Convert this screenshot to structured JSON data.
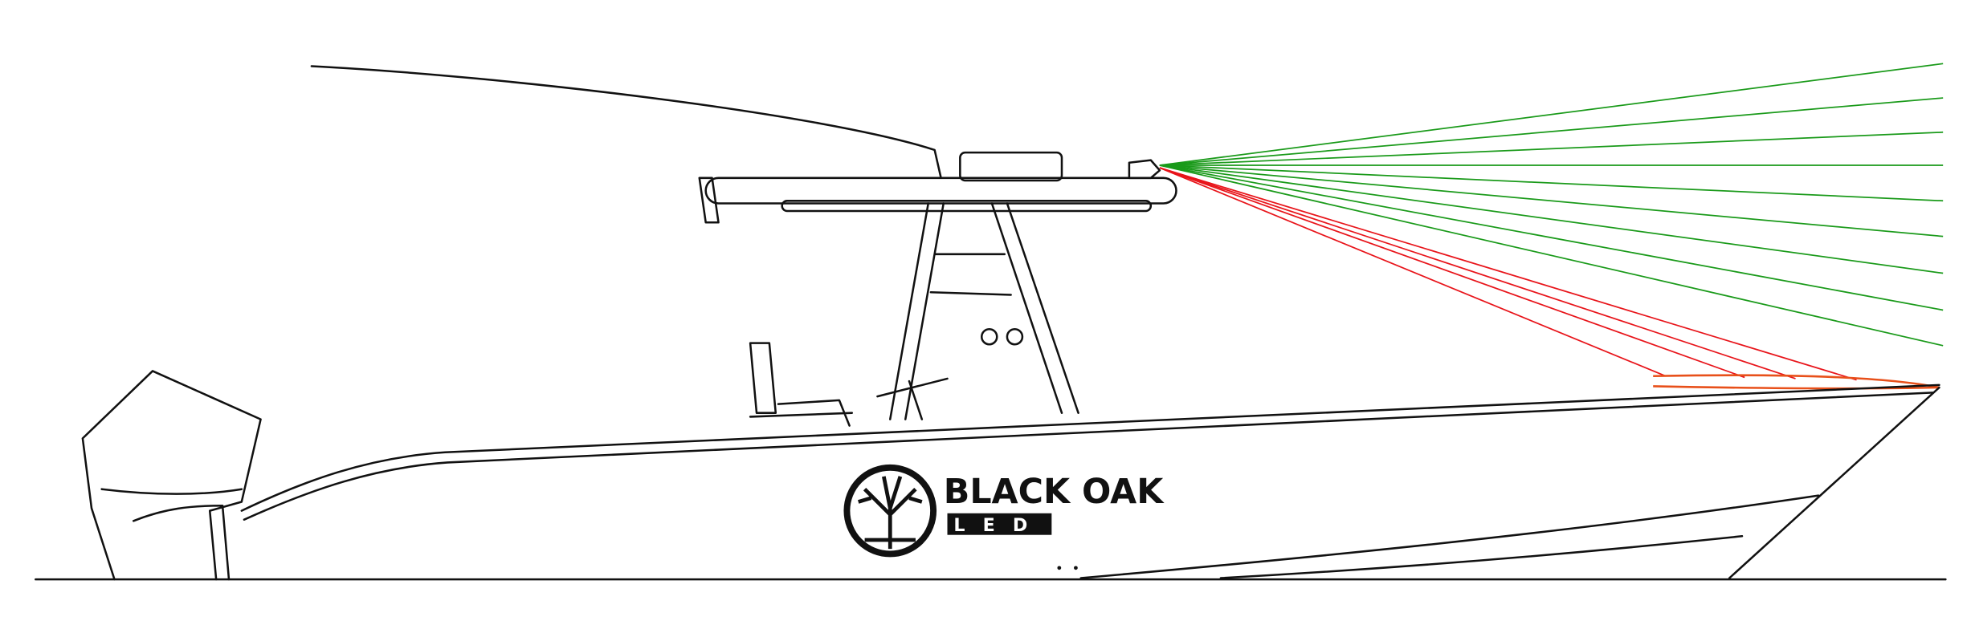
{
  "logo": {
    "brand": "BLACK OAK",
    "product": "LED"
  }
}
